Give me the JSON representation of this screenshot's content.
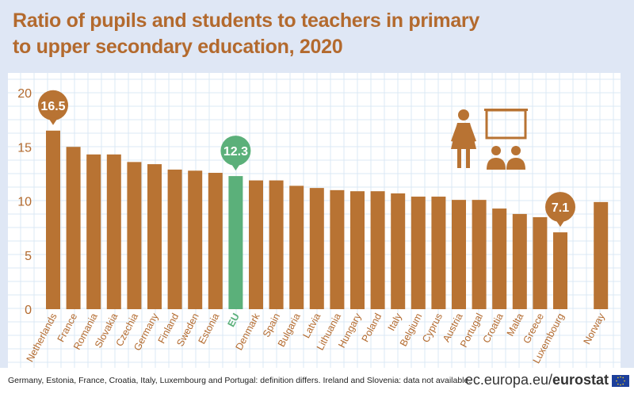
{
  "title_line1": "Ratio of pupils and students to teachers in primary",
  "title_line2": "to upper secondary education, 2020",
  "footnote": "Germany, Estonia, France, Croatia, Italy, Luxembourg and Portugal: definition differs. Ireland and Slovenia: data not available.",
  "brand": {
    "domain": "ec.europa.eu/",
    "name": "eurostat"
  },
  "icons": [
    "teacher-icon",
    "blackboard-icon",
    "students-icon",
    "eu-flag-icon"
  ],
  "colors": {
    "bar": "#b87333",
    "eu_bar": "#5bb07a",
    "highlight_eu": "#5bb07a",
    "title": "#b36a2e"
  },
  "chart_data": {
    "type": "bar",
    "title": "Ratio of pupils and students to teachers in primary to upper secondary education, 2020",
    "categories": [
      "Netherlands",
      "France",
      "Romania",
      "Slovakia",
      "Czechia",
      "Germany",
      "Finland",
      "Sweden",
      "Estonia",
      "EU",
      "Denmark",
      "Spain",
      "Bulgaria",
      "Latvia",
      "Lithuania",
      "Hungary",
      "Poland",
      "Italy",
      "Belgium",
      "Cyprus",
      "Austria",
      "Portugal",
      "Croatia",
      "Malta",
      "Greece",
      "Luxembourg",
      "",
      "Norway"
    ],
    "values": [
      16.5,
      15.0,
      14.3,
      14.3,
      13.6,
      13.4,
      12.9,
      12.8,
      12.6,
      12.3,
      11.9,
      11.9,
      11.4,
      11.2,
      11.0,
      10.9,
      10.9,
      10.7,
      10.4,
      10.4,
      10.1,
      10.1,
      9.3,
      8.8,
      8.5,
      7.1,
      null,
      9.9
    ],
    "highlight": "EU",
    "data_labels": [
      {
        "category": "Netherlands",
        "label": "16.5"
      },
      {
        "category": "EU",
        "label": "12.3"
      },
      {
        "category": "Luxembourg",
        "label": "7.1"
      }
    ],
    "yticks": [
      0,
      5,
      10,
      15,
      20
    ],
    "ylim": [
      0,
      20
    ],
    "grid": true
  }
}
